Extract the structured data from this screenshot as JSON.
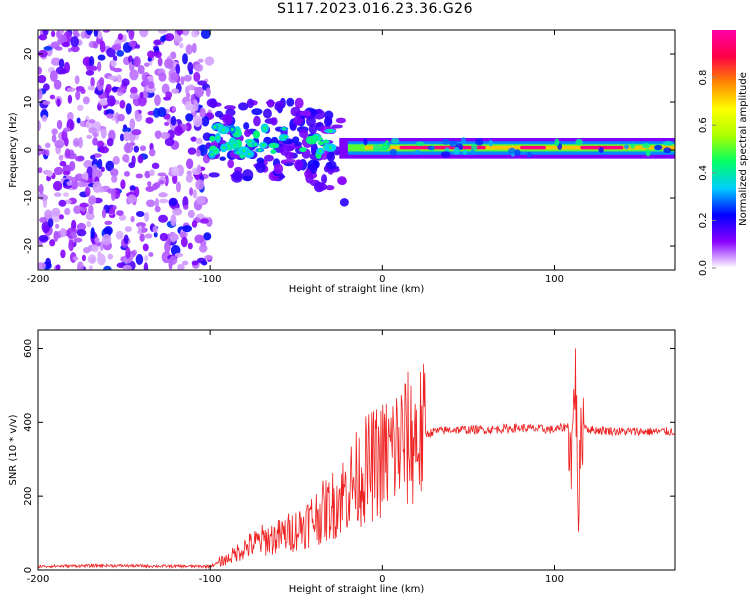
{
  "title": "S117.2023.016.23.36.G26",
  "chart_data": [
    {
      "type": "heatmap",
      "xlabel": "Height of straight line (km)",
      "ylabel": "Frequency (Hz)",
      "xlim": [
        -200,
        170
      ],
      "ylim": [
        -25,
        25
      ],
      "xticks": [
        -200,
        -100,
        0,
        100
      ],
      "yticks": [
        -20,
        -10,
        0,
        10,
        20
      ],
      "colorbar": {
        "label": "Normalized spectral amplitude",
        "range": [
          0.0,
          1.0
        ],
        "ticks": [
          "0.0",
          "0.2",
          "0.4",
          "0.6",
          "0.8"
        ],
        "tick_values": [
          0.0,
          0.2,
          0.4,
          0.6,
          0.8
        ],
        "colors": [
          "#ffffff",
          "#8800ff",
          "#0000ff",
          "#00ccff",
          "#00ff66",
          "#aaff00",
          "#ffff00",
          "#ff8800",
          "#ff0044",
          "#ff00aa"
        ]
      },
      "regions": [
        {
          "x_range": [
            -200,
            -100
          ],
          "f_range": [
            -25,
            25
          ],
          "amplitude": 0.05,
          "description": "noise"
        },
        {
          "x_range": [
            -100,
            -20
          ],
          "f_range": [
            -10,
            15
          ],
          "amplitude": 0.35
        },
        {
          "x_range": [
            -20,
            170
          ],
          "f_center": 0.5,
          "f_halfwidth": 2,
          "amplitude": 0.8
        }
      ]
    },
    {
      "type": "line",
      "xlabel": "Height of straight line (km)",
      "ylabel": "SNR (10 * v/v)",
      "xlim": [
        -200,
        170
      ],
      "ylim": [
        0,
        650
      ],
      "xticks": [
        -200,
        -100,
        0,
        100
      ],
      "yticks": [
        0,
        200,
        400,
        600
      ],
      "color": "#ee2222",
      "x": [
        -200,
        -160,
        -120,
        -100,
        -90,
        -80,
        -70,
        -60,
        -50,
        -40,
        -30,
        -20,
        -10,
        0,
        10,
        20,
        30,
        40,
        60,
        80,
        100,
        108,
        110,
        112,
        114,
        116,
        120,
        140,
        160,
        170
      ],
      "y": [
        10,
        12,
        10,
        10,
        30,
        60,
        80,
        90,
        110,
        140,
        170,
        220,
        270,
        300,
        340,
        360,
        375,
        380,
        380,
        385,
        380,
        390,
        300,
        550,
        170,
        400,
        380,
        375,
        375,
        375
      ]
    }
  ]
}
